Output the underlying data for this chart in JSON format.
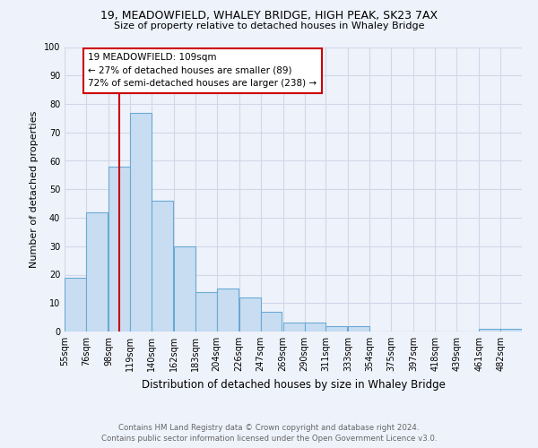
{
  "title1": "19, MEADOWFIELD, WHALEY BRIDGE, HIGH PEAK, SK23 7AX",
  "title2": "Size of property relative to detached houses in Whaley Bridge",
  "xlabel": "Distribution of detached houses by size in Whaley Bridge",
  "ylabel": "Number of detached properties",
  "categories": [
    "55sqm",
    "76sqm",
    "98sqm",
    "119sqm",
    "140sqm",
    "162sqm",
    "183sqm",
    "204sqm",
    "226sqm",
    "247sqm",
    "269sqm",
    "290sqm",
    "311sqm",
    "333sqm",
    "354sqm",
    "375sqm",
    "397sqm",
    "418sqm",
    "439sqm",
    "461sqm",
    "482sqm"
  ],
  "values": [
    19,
    42,
    58,
    77,
    46,
    30,
    14,
    15,
    12,
    7,
    3,
    3,
    2,
    2,
    0,
    0,
    0,
    0,
    0,
    1,
    1
  ],
  "bar_color": "#c9ddf2",
  "bar_edge_color": "#6aaad4",
  "vline_x": 109,
  "vline_color": "#cc0000",
  "annotation_line1": "19 MEADOWFIELD: 109sqm",
  "annotation_line2": "← 27% of detached houses are smaller (89)",
  "annotation_line3": "72% of semi-detached houses are larger (238) →",
  "annotation_box_color": "#ffffff",
  "annotation_box_edge_color": "#cc0000",
  "ylim": [
    0,
    100
  ],
  "yticks": [
    0,
    10,
    20,
    30,
    40,
    50,
    60,
    70,
    80,
    90,
    100
  ],
  "grid_color": "#d0d8e8",
  "background_color": "#eef2fb",
  "footer1": "Contains HM Land Registry data © Crown copyright and database right 2024.",
  "footer2": "Contains public sector information licensed under the Open Government Licence v3.0.",
  "bin_starts": [
    55,
    76,
    98,
    119,
    140,
    162,
    183,
    204,
    226,
    247,
    269,
    290,
    311,
    333,
    354,
    375,
    397,
    418,
    439,
    461,
    482
  ],
  "bin_width": 21
}
